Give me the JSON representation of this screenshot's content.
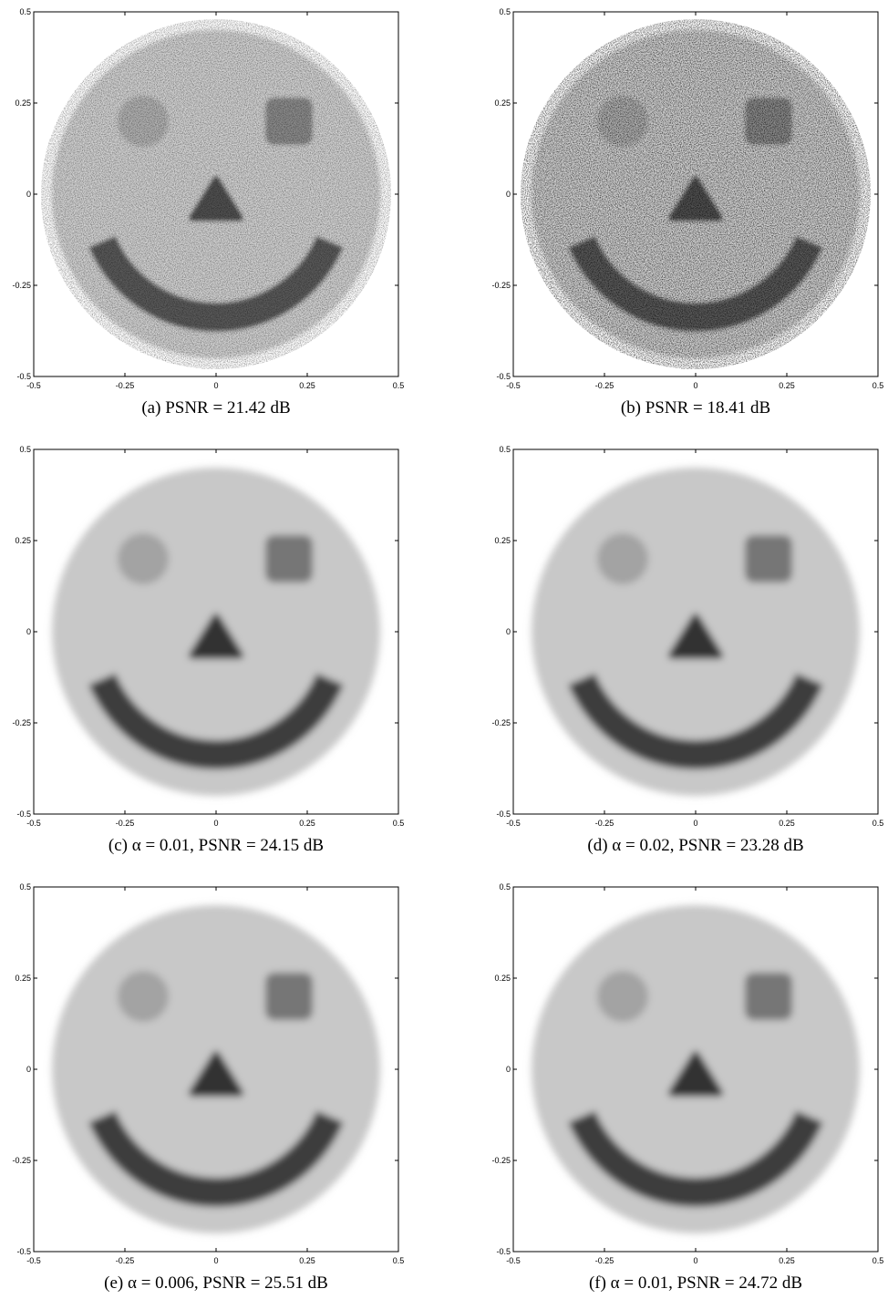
{
  "chart_data": [
    {
      "type": "image",
      "caption": "(a) PSNR = 21.42 dB",
      "xlim": [
        -0.5,
        0.5
      ],
      "ylim": [
        -0.5,
        0.5
      ],
      "xticks": [
        -0.5,
        -0.25,
        0,
        0.25,
        0.5
      ],
      "yticks": [
        -0.5,
        -0.25,
        0,
        0.25,
        0.5
      ]
    },
    {
      "type": "image",
      "caption": "(b) PSNR = 18.41 dB",
      "xlim": [
        -0.5,
        0.5
      ],
      "ylim": [
        -0.5,
        0.5
      ],
      "xticks": [
        -0.5,
        -0.25,
        0,
        0.25,
        0.5
      ],
      "yticks": [
        -0.5,
        -0.25,
        0,
        0.25,
        0.5
      ]
    },
    {
      "type": "image",
      "caption": "(c) α = 0.01, PSNR = 24.15 dB",
      "xlim": [
        -0.5,
        0.5
      ],
      "ylim": [
        -0.5,
        0.5
      ],
      "xticks": [
        -0.5,
        -0.25,
        0,
        0.25,
        0.5
      ],
      "yticks": [
        -0.5,
        -0.25,
        0,
        0.25,
        0.5
      ]
    },
    {
      "type": "image",
      "caption": "(d) α = 0.02, PSNR = 23.28 dB",
      "xlim": [
        -0.5,
        0.5
      ],
      "ylim": [
        -0.5,
        0.5
      ],
      "xticks": [
        -0.5,
        -0.25,
        0,
        0.25,
        0.5
      ],
      "yticks": [
        -0.5,
        -0.25,
        0,
        0.25,
        0.5
      ]
    },
    {
      "type": "image",
      "caption": "(e) α = 0.006, PSNR = 25.51 dB",
      "xlim": [
        -0.5,
        0.5
      ],
      "ylim": [
        -0.5,
        0.5
      ],
      "xticks": [
        -0.5,
        -0.25,
        0,
        0.25,
        0.5
      ],
      "yticks": [
        -0.5,
        -0.25,
        0,
        0.25,
        0.5
      ]
    },
    {
      "type": "image",
      "caption": "(f) α = 0.01, PSNR = 24.72 dB",
      "xlim": [
        -0.5,
        0.5
      ],
      "ylim": [
        -0.5,
        0.5
      ],
      "xticks": [
        -0.5,
        -0.25,
        0,
        0.25,
        0.5
      ],
      "yticks": [
        -0.5,
        -0.25,
        0,
        0.25,
        0.5
      ]
    }
  ]
}
